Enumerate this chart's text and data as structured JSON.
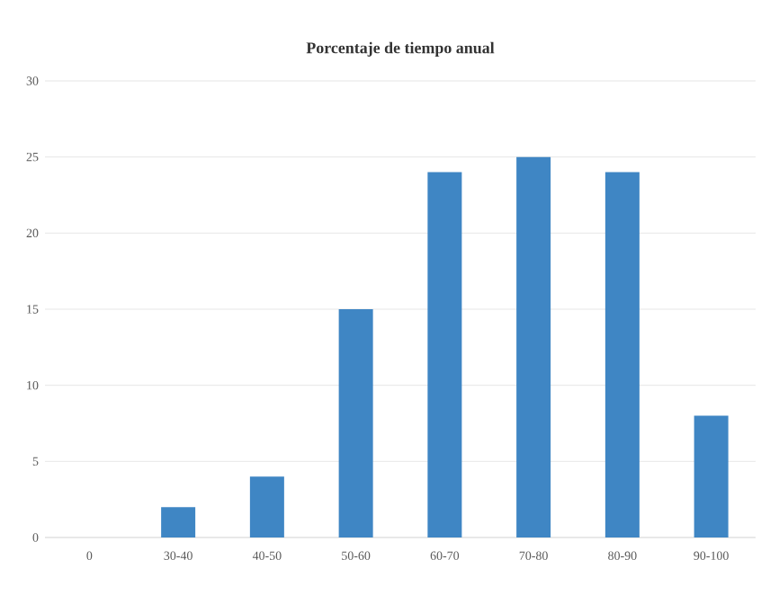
{
  "chart_data": {
    "type": "bar",
    "title": "Porcentaje de tiempo anual",
    "categories": [
      "0",
      "30-40",
      "40-50",
      "50-60",
      "60-70",
      "70-80",
      "80-90",
      "90-100"
    ],
    "values": [
      0,
      2,
      4,
      15,
      24,
      25,
      24,
      8
    ],
    "color": "#3f86c4",
    "ylim": [
      0,
      30
    ],
    "yticks": [
      0,
      5,
      10,
      15,
      20,
      25,
      30
    ],
    "grid": "y"
  }
}
